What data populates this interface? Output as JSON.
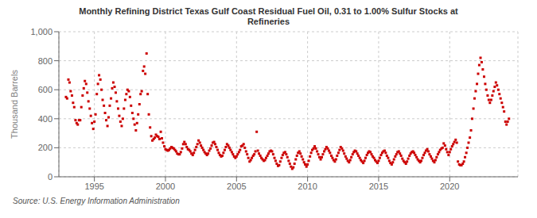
{
  "chart_data": {
    "type": "scatter",
    "title": "Monthly Refining District Texas Gulf Coast Residual Fuel Oil, 0.31 to 1.00% Sulfur Stocks at\nRefineries",
    "ylabel": "Thousand Barrels",
    "annotations": [
      "Source: U.S. Energy Information Administration"
    ],
    "color": "#cc0000",
    "marker": "square",
    "grid": true,
    "xlim": [
      1992.5,
      2024.8
    ],
    "xticks": [
      1995,
      2000,
      2005,
      2010,
      2015,
      2020
    ],
    "ylim": [
      0,
      1000
    ],
    "yticks": [
      0,
      200,
      400,
      600,
      800,
      {
        "value": 1000,
        "label": "1,000"
      }
    ],
    "x": [
      1993.0,
      1993.08,
      1993.17,
      1993.25,
      1993.33,
      1993.42,
      1993.5,
      1993.58,
      1993.67,
      1993.75,
      1993.83,
      1993.92,
      1994.0,
      1994.08,
      1994.17,
      1994.25,
      1994.33,
      1994.42,
      1994.5,
      1994.58,
      1994.67,
      1994.75,
      1994.83,
      1994.92,
      1995.0,
      1995.08,
      1995.17,
      1995.25,
      1995.33,
      1995.42,
      1995.5,
      1995.58,
      1995.67,
      1995.75,
      1995.83,
      1995.92,
      1996.0,
      1996.08,
      1996.17,
      1996.25,
      1996.33,
      1996.42,
      1996.5,
      1996.58,
      1996.67,
      1996.75,
      1996.83,
      1996.92,
      1997.0,
      1997.08,
      1997.17,
      1997.25,
      1997.33,
      1997.42,
      1997.5,
      1997.58,
      1997.67,
      1997.75,
      1997.83,
      1997.92,
      1998.0,
      1998.08,
      1998.17,
      1998.25,
      1998.33,
      1998.42,
      1998.5,
      1998.58,
      1998.67,
      1998.75,
      1998.83,
      1998.92,
      1999.0,
      1999.08,
      1999.17,
      1999.25,
      1999.33,
      1999.42,
      1999.5,
      1999.58,
      1999.67,
      1999.75,
      1999.83,
      1999.92,
      2000.0,
      2000.08,
      2000.17,
      2000.25,
      2000.33,
      2000.42,
      2000.5,
      2000.58,
      2000.67,
      2000.75,
      2000.83,
      2000.92,
      2001.0,
      2001.08,
      2001.17,
      2001.25,
      2001.33,
      2001.42,
      2001.5,
      2001.58,
      2001.67,
      2001.75,
      2001.83,
      2001.92,
      2002.0,
      2002.08,
      2002.17,
      2002.25,
      2002.33,
      2002.42,
      2002.5,
      2002.58,
      2002.67,
      2002.75,
      2002.83,
      2002.92,
      2003.0,
      2003.08,
      2003.17,
      2003.25,
      2003.33,
      2003.42,
      2003.5,
      2003.58,
      2003.67,
      2003.75,
      2003.83,
      2003.92,
      2004.0,
      2004.08,
      2004.17,
      2004.25,
      2004.33,
      2004.42,
      2004.5,
      2004.58,
      2004.67,
      2004.75,
      2004.83,
      2004.92,
      2005.0,
      2005.08,
      2005.17,
      2005.25,
      2005.33,
      2005.42,
      2005.5,
      2005.58,
      2005.67,
      2005.75,
      2005.83,
      2005.92,
      2006.0,
      2006.08,
      2006.17,
      2006.25,
      2006.33,
      2006.42,
      2006.5,
      2006.58,
      2006.67,
      2006.75,
      2006.83,
      2006.92,
      2007.0,
      2007.08,
      2007.17,
      2007.25,
      2007.33,
      2007.42,
      2007.5,
      2007.58,
      2007.67,
      2007.75,
      2007.83,
      2007.92,
      2008.0,
      2008.08,
      2008.17,
      2008.25,
      2008.33,
      2008.42,
      2008.5,
      2008.58,
      2008.67,
      2008.75,
      2008.83,
      2008.92,
      2009.0,
      2009.08,
      2009.17,
      2009.25,
      2009.33,
      2009.42,
      2009.5,
      2009.58,
      2009.67,
      2009.75,
      2009.83,
      2009.92,
      2010.0,
      2010.08,
      2010.17,
      2010.25,
      2010.33,
      2010.42,
      2010.5,
      2010.58,
      2010.67,
      2010.75,
      2010.83,
      2010.92,
      2011.0,
      2011.08,
      2011.17,
      2011.25,
      2011.33,
      2011.42,
      2011.5,
      2011.58,
      2011.67,
      2011.75,
      2011.83,
      2011.92,
      2012.0,
      2012.08,
      2012.17,
      2012.25,
      2012.33,
      2012.42,
      2012.5,
      2012.58,
      2012.67,
      2012.75,
      2012.83,
      2012.92,
      2013.0,
      2013.08,
      2013.17,
      2013.25,
      2013.33,
      2013.42,
      2013.5,
      2013.58,
      2013.67,
      2013.75,
      2013.83,
      2013.92,
      2014.0,
      2014.08,
      2014.17,
      2014.25,
      2014.33,
      2014.42,
      2014.5,
      2014.58,
      2014.67,
      2014.75,
      2014.83,
      2014.92,
      2015.0,
      2015.08,
      2015.17,
      2015.25,
      2015.33,
      2015.42,
      2015.5,
      2015.58,
      2015.67,
      2015.75,
      2015.83,
      2015.92,
      2016.0,
      2016.08,
      2016.17,
      2016.25,
      2016.33,
      2016.42,
      2016.5,
      2016.58,
      2016.67,
      2016.75,
      2016.83,
      2016.92,
      2017.0,
      2017.08,
      2017.17,
      2017.25,
      2017.33,
      2017.42,
      2017.5,
      2017.58,
      2017.67,
      2017.75,
      2017.83,
      2017.92,
      2018.0,
      2018.08,
      2018.17,
      2018.25,
      2018.33,
      2018.42,
      2018.5,
      2018.58,
      2018.67,
      2018.75,
      2018.83,
      2018.92,
      2019.0,
      2019.08,
      2019.17,
      2019.25,
      2019.33,
      2019.42,
      2019.5,
      2019.58,
      2019.67,
      2019.75,
      2019.83,
      2019.92,
      2020.0,
      2020.08,
      2020.17,
      2020.25,
      2020.33,
      2020.42,
      2020.5,
      2020.58,
      2020.67,
      2020.75,
      2020.83,
      2020.92,
      2021.0,
      2021.08,
      2021.17,
      2021.25,
      2021.33,
      2021.42,
      2021.5,
      2021.58,
      2021.67,
      2021.75,
      2021.83,
      2021.92,
      2022.0,
      2022.08,
      2022.17,
      2022.25,
      2022.33,
      2022.42,
      2022.5,
      2022.58,
      2022.67,
      2022.75,
      2022.83,
      2022.92,
      2023.0,
      2023.08,
      2023.17,
      2023.25,
      2023.33,
      2023.42,
      2023.5,
      2023.58,
      2023.67,
      2023.75,
      2023.83,
      2023.92,
      2024.0,
      2024.08,
      2024.17
    ],
    "values": [
      550,
      540,
      670,
      650,
      590,
      560,
      510,
      480,
      390,
      370,
      360,
      390,
      390,
      480,
      560,
      610,
      660,
      640,
      580,
      520,
      470,
      420,
      370,
      330,
      380,
      430,
      570,
      640,
      700,
      670,
      600,
      530,
      490,
      440,
      390,
      350,
      410,
      490,
      540,
      610,
      650,
      620,
      580,
      520,
      470,
      420,
      380,
      350,
      400,
      470,
      530,
      570,
      600,
      590,
      550,
      490,
      440,
      400,
      360,
      320,
      370,
      430,
      500,
      570,
      590,
      730,
      760,
      710,
      850,
      570,
      430,
      340,
      280,
      250,
      260,
      270,
      290,
      280,
      275,
      260,
      310,
      265,
      235,
      210,
      190,
      185,
      180,
      185,
      195,
      205,
      200,
      195,
      185,
      175,
      160,
      155,
      155,
      170,
      195,
      225,
      240,
      225,
      205,
      190,
      185,
      175,
      160,
      150,
      165,
      185,
      205,
      225,
      250,
      235,
      215,
      200,
      185,
      170,
      160,
      150,
      160,
      180,
      195,
      215,
      235,
      240,
      225,
      205,
      185,
      165,
      150,
      140,
      145,
      165,
      185,
      205,
      225,
      215,
      200,
      185,
      170,
      155,
      140,
      130,
      140,
      155,
      170,
      185,
      210,
      215,
      225,
      200,
      175,
      155,
      130,
      105,
      115,
      130,
      145,
      155,
      175,
      310,
      180,
      160,
      145,
      130,
      120,
      110,
      115,
      130,
      145,
      160,
      175,
      180,
      175,
      155,
      130,
      110,
      90,
      75,
      80,
      105,
      130,
      150,
      165,
      170,
      155,
      135,
      110,
      90,
      70,
      55,
      65,
      90,
      120,
      145,
      165,
      175,
      160,
      140,
      120,
      100,
      85,
      70,
      85,
      110,
      140,
      165,
      185,
      195,
      210,
      195,
      175,
      155,
      135,
      120,
      135,
      155,
      175,
      190,
      205,
      195,
      180,
      165,
      145,
      130,
      115,
      105,
      120,
      145,
      165,
      185,
      205,
      195,
      180,
      160,
      140,
      125,
      110,
      100,
      115,
      135,
      155,
      170,
      180,
      175,
      160,
      145,
      130,
      115,
      105,
      95,
      110,
      130,
      150,
      165,
      175,
      170,
      155,
      140,
      130,
      115,
      105,
      95,
      110,
      130,
      150,
      165,
      175,
      180,
      165,
      145,
      130,
      110,
      95,
      85,
      100,
      120,
      140,
      155,
      170,
      175,
      160,
      145,
      125,
      110,
      100,
      90,
      105,
      125,
      145,
      160,
      170,
      175,
      165,
      150,
      135,
      120,
      110,
      100,
      110,
      130,
      150,
      165,
      180,
      190,
      175,
      155,
      140,
      125,
      110,
      100,
      115,
      135,
      155,
      170,
      185,
      195,
      200,
      230,
      215,
      190,
      170,
      150,
      170,
      190,
      210,
      225,
      240,
      255,
      235,
      105,
      85,
      80,
      80,
      90,
      105,
      135,
      165,
      200,
      235,
      270,
      320,
      400,
      470,
      540,
      590,
      640,
      710,
      770,
      820,
      790,
      740,
      690,
      640,
      600,
      560,
      530,
      510,
      530,
      560,
      590,
      620,
      650,
      630,
      600,
      570,
      540,
      510,
      480,
      450,
      380,
      360,
      380,
      400
    ]
  }
}
